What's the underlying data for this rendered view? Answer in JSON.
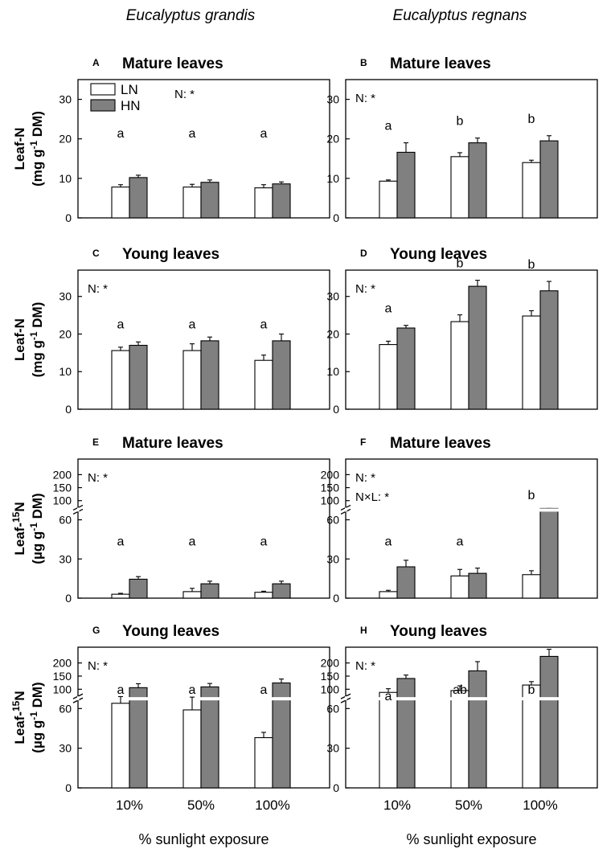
{
  "species_titles": [
    "Eucalyptus grandis",
    "Eucalyptus regnans"
  ],
  "legend": [
    {
      "label": "LN",
      "color": "#ffffff"
    },
    {
      "label": "HN",
      "color": "#808080"
    }
  ],
  "x_axis_label": "% sunlight exposure",
  "x_categories": [
    "10%",
    "50%",
    "100%"
  ],
  "ylabel_N": {
    "line1": "Leaf-N",
    "line2": "(mg g",
    "sup": "-1",
    "line2_end": " DM)"
  },
  "ylabel_15N": {
    "line1_pre": "Leaf-",
    "sup1": "15",
    "line1_post": "N",
    "line2": "(µg g",
    "sup2": "-1",
    "line2_end": " DM)"
  },
  "chart_data": [
    {
      "id": "A",
      "type": "bar",
      "title": "Mature leaves",
      "species": "Eucalyptus grandis",
      "ylabel": "Leaf-N (mg g-1 DM)",
      "ylim": [
        0,
        35
      ],
      "yticks": [
        0,
        10,
        20,
        30
      ],
      "categories": [
        "10%",
        "50%",
        "100%"
      ],
      "series": [
        {
          "name": "LN",
          "values": [
            7.8,
            7.8,
            7.6
          ],
          "errors": [
            0.6,
            0.7,
            0.8
          ]
        },
        {
          "name": "HN",
          "values": [
            10.2,
            9.0,
            8.6
          ],
          "errors": [
            0.6,
            0.6,
            0.5
          ]
        }
      ],
      "letters": [
        "a",
        "a",
        "a"
      ],
      "stats": [
        "N: *"
      ]
    },
    {
      "id": "B",
      "type": "bar",
      "title": "Mature leaves",
      "species": "Eucalyptus regnans",
      "ylabel": "Leaf-N (mg g-1 DM)",
      "ylim": [
        0,
        35
      ],
      "yticks": [
        0,
        10,
        20,
        30
      ],
      "categories": [
        "10%",
        "50%",
        "100%"
      ],
      "series": [
        {
          "name": "LN",
          "values": [
            9.3,
            15.5,
            14.0
          ],
          "errors": [
            0.3,
            1.0,
            0.6
          ]
        },
        {
          "name": "HN",
          "values": [
            16.6,
            19.0,
            19.5
          ],
          "errors": [
            2.4,
            1.2,
            1.3
          ]
        }
      ],
      "letters": [
        "a",
        "b",
        "b"
      ],
      "stats": [
        "N: *"
      ]
    },
    {
      "id": "C",
      "type": "bar",
      "title": "Young leaves",
      "species": "Eucalyptus grandis",
      "ylabel": "Leaf-N (mg g-1 DM)",
      "ylim": [
        0,
        37
      ],
      "yticks": [
        0,
        10,
        20,
        30
      ],
      "categories": [
        "10%",
        "50%",
        "100%"
      ],
      "series": [
        {
          "name": "LN",
          "values": [
            15.6,
            15.6,
            13.0
          ],
          "errors": [
            0.9,
            1.8,
            1.4
          ]
        },
        {
          "name": "HN",
          "values": [
            17.0,
            18.2,
            18.2
          ],
          "errors": [
            0.9,
            1.0,
            1.8
          ]
        }
      ],
      "letters": [
        "a",
        "a",
        "a"
      ],
      "stats": [
        "N: *"
      ]
    },
    {
      "id": "D",
      "type": "bar",
      "title": "Young leaves",
      "species": "Eucalyptus regnans",
      "ylabel": "Leaf-N (mg g-1 DM)",
      "ylim": [
        0,
        37
      ],
      "yticks": [
        0,
        10,
        20,
        30
      ],
      "categories": [
        "10%",
        "50%",
        "100%"
      ],
      "series": [
        {
          "name": "LN",
          "values": [
            17.2,
            23.3,
            24.8
          ],
          "errors": [
            0.9,
            1.8,
            1.4
          ]
        },
        {
          "name": "HN",
          "values": [
            21.6,
            32.7,
            31.5
          ],
          "errors": [
            0.7,
            1.6,
            2.5
          ]
        }
      ],
      "letters": [
        "a",
        "b",
        "b"
      ],
      "stats": [
        "N: *"
      ]
    },
    {
      "id": "E",
      "type": "bar",
      "title": "Mature leaves",
      "species": "Eucalyptus grandis",
      "ylabel": "Leaf-15N (µg g-1 DM)",
      "broken_axis": true,
      "lower_ylim": [
        0,
        65
      ],
      "lower_yticks": [
        0,
        30,
        60
      ],
      "upper_ylim": [
        70,
        260
      ],
      "upper_yticks": [
        100,
        150,
        200
      ],
      "categories": [
        "10%",
        "50%",
        "100%"
      ],
      "series": [
        {
          "name": "LN",
          "values": [
            3,
            5,
            4.5
          ],
          "errors": [
            0.7,
            2.5,
            0.8
          ]
        },
        {
          "name": "HN",
          "values": [
            14.5,
            11,
            11
          ],
          "errors": [
            2,
            2,
            2
          ]
        }
      ],
      "letters": [
        "a",
        "a",
        "a"
      ],
      "stats": [
        "N: *"
      ]
    },
    {
      "id": "F",
      "type": "bar",
      "title": "Mature leaves",
      "species": "Eucalyptus regnans",
      "ylabel": "Leaf-15N (µg g-1 DM)",
      "broken_axis": true,
      "lower_ylim": [
        0,
        65
      ],
      "lower_yticks": [
        0,
        30,
        60
      ],
      "upper_ylim": [
        70,
        260
      ],
      "upper_yticks": [
        100,
        150,
        200
      ],
      "categories": [
        "10%",
        "50%",
        "100%"
      ],
      "series": [
        {
          "name": "LN",
          "values": [
            5,
            17,
            18
          ],
          "errors": [
            1,
            5,
            3
          ]
        },
        {
          "name": "HN",
          "values": [
            24,
            19,
            67
          ],
          "errors": [
            5,
            4,
            2
          ]
        }
      ],
      "letters": [
        "a",
        "a",
        "b"
      ],
      "stats": [
        "N: *",
        "N×L: *"
      ]
    },
    {
      "id": "G",
      "type": "bar",
      "title": "Young leaves",
      "species": "Eucalyptus grandis",
      "ylabel": "Leaf-15N (µg g-1 DM)",
      "broken_axis": true,
      "lower_ylim": [
        0,
        65
      ],
      "lower_yticks": [
        0,
        30,
        60
      ],
      "upper_ylim": [
        70,
        260
      ],
      "upper_yticks": [
        100,
        150,
        200
      ],
      "categories": [
        "10%",
        "50%",
        "100%"
      ],
      "series": [
        {
          "name": "LN",
          "values": [
            64,
            59,
            38
          ],
          "errors": [
            8,
            10,
            4
          ]
        },
        {
          "name": "HN",
          "values": [
            106,
            109,
            124
          ],
          "errors": [
            15,
            13,
            15
          ]
        }
      ],
      "letters": [
        "a",
        "a",
        "a"
      ],
      "stats": [
        "N: *"
      ]
    },
    {
      "id": "H",
      "type": "bar",
      "title": "Young leaves",
      "species": "Eucalyptus regnans",
      "ylabel": "Leaf-15N (µg g-1 DM)",
      "broken_axis": true,
      "lower_ylim": [
        0,
        65
      ],
      "lower_yticks": [
        0,
        30,
        60
      ],
      "upper_ylim": [
        70,
        260
      ],
      "upper_yticks": [
        100,
        150,
        200
      ],
      "categories": [
        "10%",
        "50%",
        "100%"
      ],
      "series": [
        {
          "name": "LN",
          "values": [
            88,
            95,
            116
          ],
          "errors": [
            14,
            18,
            13
          ]
        },
        {
          "name": "HN",
          "values": [
            141,
            170,
            225
          ],
          "errors": [
            13,
            35,
            27
          ]
        }
      ],
      "letters": [
        "a",
        "ab",
        "b"
      ],
      "stats": [
        "N: *"
      ]
    }
  ]
}
